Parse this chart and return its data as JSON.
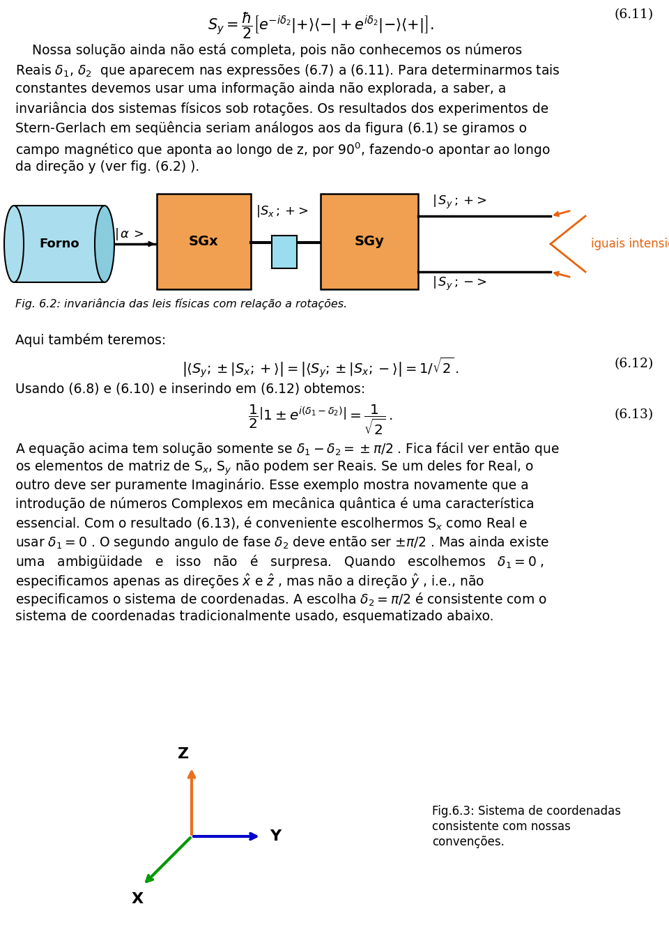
{
  "bg_color": "#ffffff",
  "orange_color": "#f0a050",
  "light_orange": "#f5c87a",
  "cyan_color": "#aadeee",
  "dark_cyan": "#88ccdd",
  "blue_color": "#0000cc",
  "green_color": "#009900",
  "red_orange": "#e8610a",
  "eq611": "$S_y = \\dfrac{\\hbar}{2}\\left[e^{-i\\delta_2}|{+}\\rangle\\langle{-}| + e^{i\\delta_2}|{-}\\rangle\\langle{+}|\\right].$",
  "eq611_label": "(6.11)",
  "para1_line0": "    Nossa solução ainda não está completa, pois não conhecemos os números",
  "para1_line1": "Reais $\\delta_1$, $\\delta_2$  que aparecem nas expressões (6.7) a (6.11). Para determinarmos tais",
  "para1_line2": "constantes devemos usar uma informação ainda não explorada, a saber, a",
  "para1_line3": "invariância dos sistemas físicos sob rotações. Os resultados dos experimentos de",
  "para1_line4": "Stern-Gerlach em seqüência seriam análogos aos da figura (6.1) se giramos o",
  "para1_line5": "campo magnético que aponta ao longo de z, por 90$^0$, fazendo-o apontar ao longo",
  "para1_line6": "da direção y (ver fig. (6.2) ).",
  "fig62_caption": "Fig. 6.2: invariância das leis físicas com relação a rotações.",
  "para_aqui": "Aqui também teremos:",
  "eq612": "$\\left|\\langle S_y;\\pm|S_x;+\\rangle\\right| = \\left|\\langle S_y;\\pm|S_x;-\\rangle\\right| = 1/\\sqrt{2}\\,.$",
  "eq612_label": "(6.12)",
  "para_usando": "Usando (6.8) e (6.10) e inserindo em (6.12) obtemos:",
  "eq613": "$\\dfrac{1}{2}\\left|1 \\pm e^{i(\\delta_1 - \\delta_2)}\\right| = \\dfrac{1}{\\sqrt{2}}\\,.$",
  "eq613_label": "(6.13)",
  "para3_lines": [
    "A equação acima tem solução somente se $\\delta_1 - \\delta_2 = \\pm\\pi/2$ . Fica fácil ver então que",
    "os elementos de matriz de S$_x$, S$_y$ não podem ser Reais. Se um deles for Real, o",
    "outro deve ser puramente Imaginário. Esse exemplo mostra novamente que a",
    "introdução de números Complexos em mecânica quântica é uma característica",
    "essencial. Com o resultado (6.13), é conveniente escolhermos S$_x$ como Real e",
    "usar $\\delta_1 = 0$ . O segundo angulo de fase $\\delta_2$ deve então ser $\\pm\\pi / 2$ . Mas ainda existe",
    "uma   ambigüidade   e   isso   não   é   surpresa.   Quando   escolhemos   $\\delta_1 = 0$ ,",
    "especificamos apenas as direções $\\hat{x}$ e $\\hat{z}$ , mas não a direção $\\hat{y}$ , i.e., não",
    "especificamos o sistema de coordenadas. A escolha $\\delta_2 = \\pi / 2$ é consistente com o",
    "sistema de coordenadas tradicionalmente usado, esquematizado abaixo."
  ],
  "fig63_caption_line1": "Fig.6.3: Sistema de coordenadas",
  "fig63_caption_line2": "consistente com nossas",
  "fig63_caption_line3": "convenções."
}
